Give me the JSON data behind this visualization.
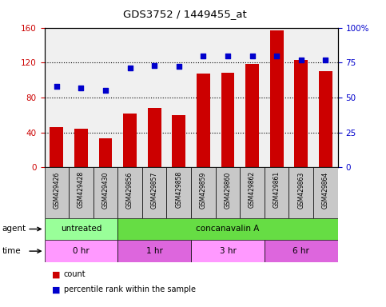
{
  "title": "GDS3752 / 1449455_at",
  "samples": [
    "GSM429426",
    "GSM429428",
    "GSM429430",
    "GSM429856",
    "GSM429857",
    "GSM429858",
    "GSM429859",
    "GSM429860",
    "GSM429862",
    "GSM429861",
    "GSM429863",
    "GSM429864"
  ],
  "counts": [
    46,
    44,
    33,
    62,
    68,
    60,
    107,
    108,
    118,
    157,
    123,
    110
  ],
  "percentile": [
    58,
    57,
    55,
    71,
    73,
    72,
    80,
    80,
    80,
    80,
    77,
    77
  ],
  "left_ylim": [
    0,
    160
  ],
  "right_ylim": [
    0,
    100
  ],
  "left_yticks": [
    0,
    40,
    80,
    120,
    160
  ],
  "right_yticks": [
    0,
    25,
    50,
    75,
    100
  ],
  "right_yticklabels": [
    "0",
    "25",
    "50",
    "75",
    "100%"
  ],
  "bar_color": "#cc0000",
  "dot_color": "#0000cc",
  "agent_groups": [
    {
      "label": "untreated",
      "start": 0,
      "end": 3,
      "color": "#99ff99"
    },
    {
      "label": "concanavalin A",
      "start": 3,
      "end": 12,
      "color": "#66dd44"
    }
  ],
  "time_groups": [
    {
      "label": "0 hr",
      "start": 0,
      "end": 3,
      "color": "#ff99ff"
    },
    {
      "label": "1 hr",
      "start": 3,
      "end": 6,
      "color": "#dd66dd"
    },
    {
      "label": "3 hr",
      "start": 6,
      "end": 9,
      "color": "#ff99ff"
    },
    {
      "label": "6 hr",
      "start": 9,
      "end": 12,
      "color": "#dd66dd"
    }
  ],
  "legend_count_label": "count",
  "legend_pct_label": "percentile rank within the sample",
  "xlabel_agent": "agent",
  "xlabel_time": "time",
  "tick_label_color_left": "#cc0000",
  "tick_label_color_right": "#0000cc",
  "bg_plot": "#f0f0f0",
  "bg_sample_row": "#c8c8c8"
}
